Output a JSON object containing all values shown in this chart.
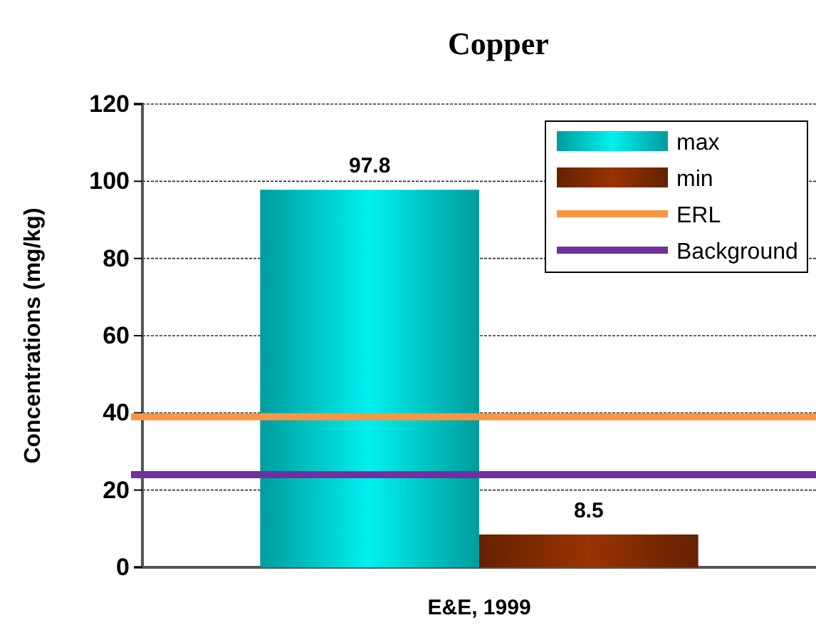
{
  "chart_data": {
    "type": "bar",
    "title": "Copper",
    "ylabel": "Concentrations (mg/kg)",
    "categories": [
      "E&E, 1999"
    ],
    "series": [
      {
        "name": "max",
        "color": "#00f0f0",
        "values": [
          97.8
        ]
      },
      {
        "name": "min",
        "color": "#993300",
        "values": [
          8.5
        ]
      }
    ],
    "ref_lines": [
      {
        "axis": "y",
        "value": 39,
        "label": "ERL",
        "color": "#f79646",
        "line_style": "solid"
      },
      {
        "axis": "y",
        "value": 24,
        "label": "Background",
        "color": "#7030a0",
        "line_style": "solid"
      }
    ],
    "ylim": [
      0,
      120
    ],
    "yticks": [
      0,
      20,
      40,
      60,
      80,
      100,
      120
    ],
    "grid": "y",
    "data_labels": true,
    "legend": "top right"
  }
}
